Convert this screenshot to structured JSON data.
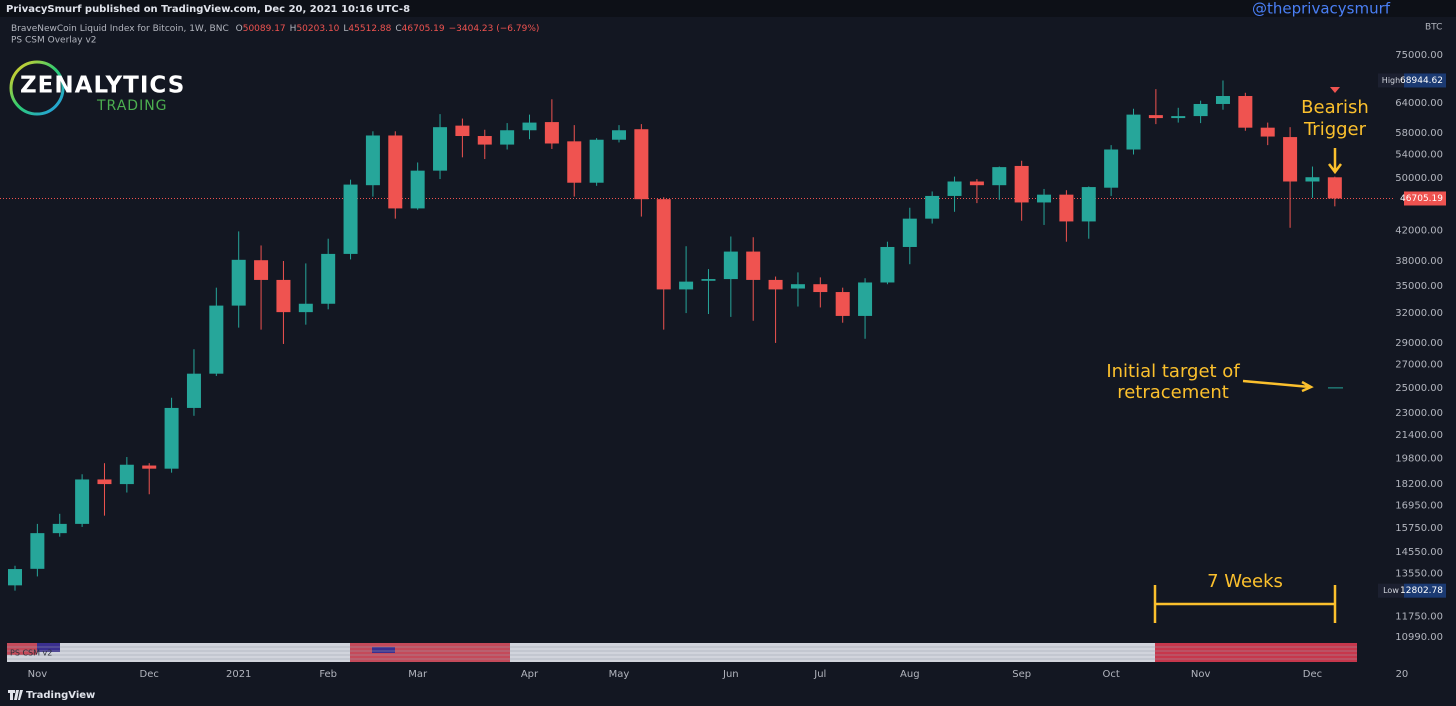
{
  "header": {
    "publisher": "PrivacySmurf published on TradingView.com, Dec 20, 2021 10:16 UTC-8",
    "watermark": "@theprivacysmurf"
  },
  "logo": {
    "name": "ZENALYTICS",
    "sub": "TRADING"
  },
  "footer": {
    "brand": "TradingView"
  },
  "chart_data": {
    "type": "candlestick",
    "symbol": "BraveNewCoin Liquid Index for Bitcoin, 1W, BNC",
    "ohlc": [
      {
        "key": "O",
        "value": "50089.17"
      },
      {
        "key": "H",
        "value": "50203.10"
      },
      {
        "key": "L",
        "value": "45512.88"
      },
      {
        "key": "C",
        "value": "46705.19"
      }
    ],
    "change": "−3404.23 (−6.79%)",
    "overlay": "PS CSM Overlay v2",
    "indicator": "PS CSM v2",
    "unit": "BTC",
    "up_color": "#26a69a",
    "down_color": "#ef5350",
    "log_scale": true,
    "grid": false,
    "categories": [
      null,
      "Nov",
      null,
      null,
      null,
      null,
      "Dec",
      null,
      null,
      null,
      "2021",
      null,
      null,
      null,
      "Feb",
      null,
      null,
      null,
      "Mar",
      null,
      null,
      null,
      null,
      "Apr",
      null,
      null,
      null,
      "May",
      null,
      null,
      null,
      null,
      "Jun",
      null,
      null,
      null,
      "Jul",
      null,
      null,
      null,
      "Aug",
      null,
      null,
      null,
      null,
      "Sep",
      null,
      null,
      null,
      "Oct",
      null,
      null,
      null,
      "Nov",
      null,
      null,
      null,
      null,
      "Dec",
      null,
      null,
      null,
      "20"
    ],
    "open": [
      13030,
      13760,
      15480,
      15960,
      18480,
      18200,
      19350,
      19150,
      23400,
      26200,
      32800,
      38100,
      35700,
      32100,
      33000,
      38900,
      48800,
      57500,
      45200,
      51200,
      59400,
      57400,
      55800,
      58500,
      60100,
      56400,
      49200,
      56700,
      58700,
      46600,
      34600,
      35600,
      35800,
      39200,
      35700,
      34700,
      35200,
      34300,
      31700,
      35400,
      39800,
      43700,
      47100,
      49400,
      48800,
      52000,
      46100,
      47300,
      43300,
      48400,
      54900,
      61500,
      60900,
      61300,
      63800,
      65500,
      59000,
      57200,
      49400,
      50089.17,
      null,
      null,
      null
    ],
    "high": [
      13900,
      15960,
      16500,
      18800,
      19500,
      19900,
      19500,
      24200,
      28400,
      34800,
      41900,
      40000,
      38000,
      37700,
      40900,
      49700,
      58300,
      58300,
      52600,
      61700,
      60800,
      58600,
      59900,
      61600,
      64800,
      59500,
      57000,
      59500,
      59700,
      46900,
      39900,
      37000,
      41200,
      41100,
      36100,
      36600,
      36000,
      34800,
      35900,
      40500,
      45300,
      47800,
      50200,
      49800,
      51900,
      52900,
      48200,
      48000,
      48600,
      55700,
      62800,
      67000,
      63000,
      64500,
      68944.62,
      66200,
      60000,
      59100,
      51900,
      50203.1,
      null,
      null,
      null
    ],
    "low": [
      12802.78,
      13420,
      15300,
      15800,
      16400,
      17700,
      17600,
      18900,
      22800,
      26000,
      30500,
      30300,
      28900,
      30800,
      32400,
      38200,
      47000,
      43700,
      45000,
      49800,
      53500,
      53200,
      54900,
      56800,
      55000,
      47000,
      48700,
      56200,
      44000,
      30300,
      32000,
      31900,
      31600,
      31200,
      29000,
      32700,
      32600,
      31000,
      29400,
      35200,
      37600,
      43000,
      44700,
      46000,
      46500,
      43400,
      42800,
      40500,
      40900,
      47100,
      54000,
      59700,
      60000,
      59900,
      62600,
      58400,
      55700,
      42400,
      46800,
      45512.88,
      null,
      null,
      null
    ],
    "close": [
      13750,
      15480,
      15960,
      18480,
      18200,
      19400,
      19150,
      23400,
      26200,
      32800,
      38150,
      35700,
      32100,
      33000,
      38900,
      48900,
      57500,
      45200,
      51200,
      59100,
      57400,
      55800,
      58500,
      60000,
      56000,
      49200,
      56700,
      58500,
      46600,
      34600,
      35500,
      35800,
      39200,
      35700,
      34600,
      35200,
      34300,
      31700,
      35400,
      39800,
      43700,
      47100,
      49400,
      48800,
      51800,
      46100,
      47300,
      43300,
      48500,
      54900,
      61600,
      60900,
      61300,
      63800,
      65500,
      59000,
      57300,
      49400,
      50100,
      46705.19,
      null,
      null,
      null
    ],
    "ylim": [
      10880,
      84730
    ],
    "yticks": [
      {
        "value": 75000,
        "label": "75000.00"
      },
      {
        "value": 64000,
        "label": "64000.00"
      },
      {
        "value": 58000,
        "label": "58000.00"
      },
      {
        "value": 54000,
        "label": "54000.00"
      },
      {
        "value": 50000,
        "label": "50000.00"
      },
      {
        "value": 42000,
        "label": "42000.00"
      },
      {
        "value": 38000,
        "label": "38000.00"
      },
      {
        "value": 35000,
        "label": "35000.00"
      },
      {
        "value": 32000,
        "label": "32000.00"
      },
      {
        "value": 29000,
        "label": "29000.00"
      },
      {
        "value": 27000,
        "label": "27000.00"
      },
      {
        "value": 25000,
        "label": "25000.00"
      },
      {
        "value": 23000,
        "label": "23000.00"
      },
      {
        "value": 21400,
        "label": "21400.00"
      },
      {
        "value": 19800,
        "label": "19800.00"
      },
      {
        "value": 18200,
        "label": "18200.00"
      },
      {
        "value": 16950,
        "label": "16950.00"
      },
      {
        "value": 15750,
        "label": "15750.00"
      },
      {
        "value": 14550,
        "label": "14550.00"
      },
      {
        "value": 13550,
        "label": "13550.00"
      },
      {
        "value": 11750,
        "label": "11750.00"
      },
      {
        "value": 10990,
        "label": "10990.00"
      }
    ],
    "price_labels": [
      {
        "name": "High",
        "value": 68944.62
      },
      {
        "name": "Low",
        "value": 12802.78
      }
    ],
    "last_price": 46705.19,
    "annotations": {
      "trigger": [
        "Bearish",
        "Trigger"
      ],
      "target": [
        "Initial target of",
        "retracement"
      ],
      "target_line": 25000,
      "span": "7 Weeks"
    }
  }
}
